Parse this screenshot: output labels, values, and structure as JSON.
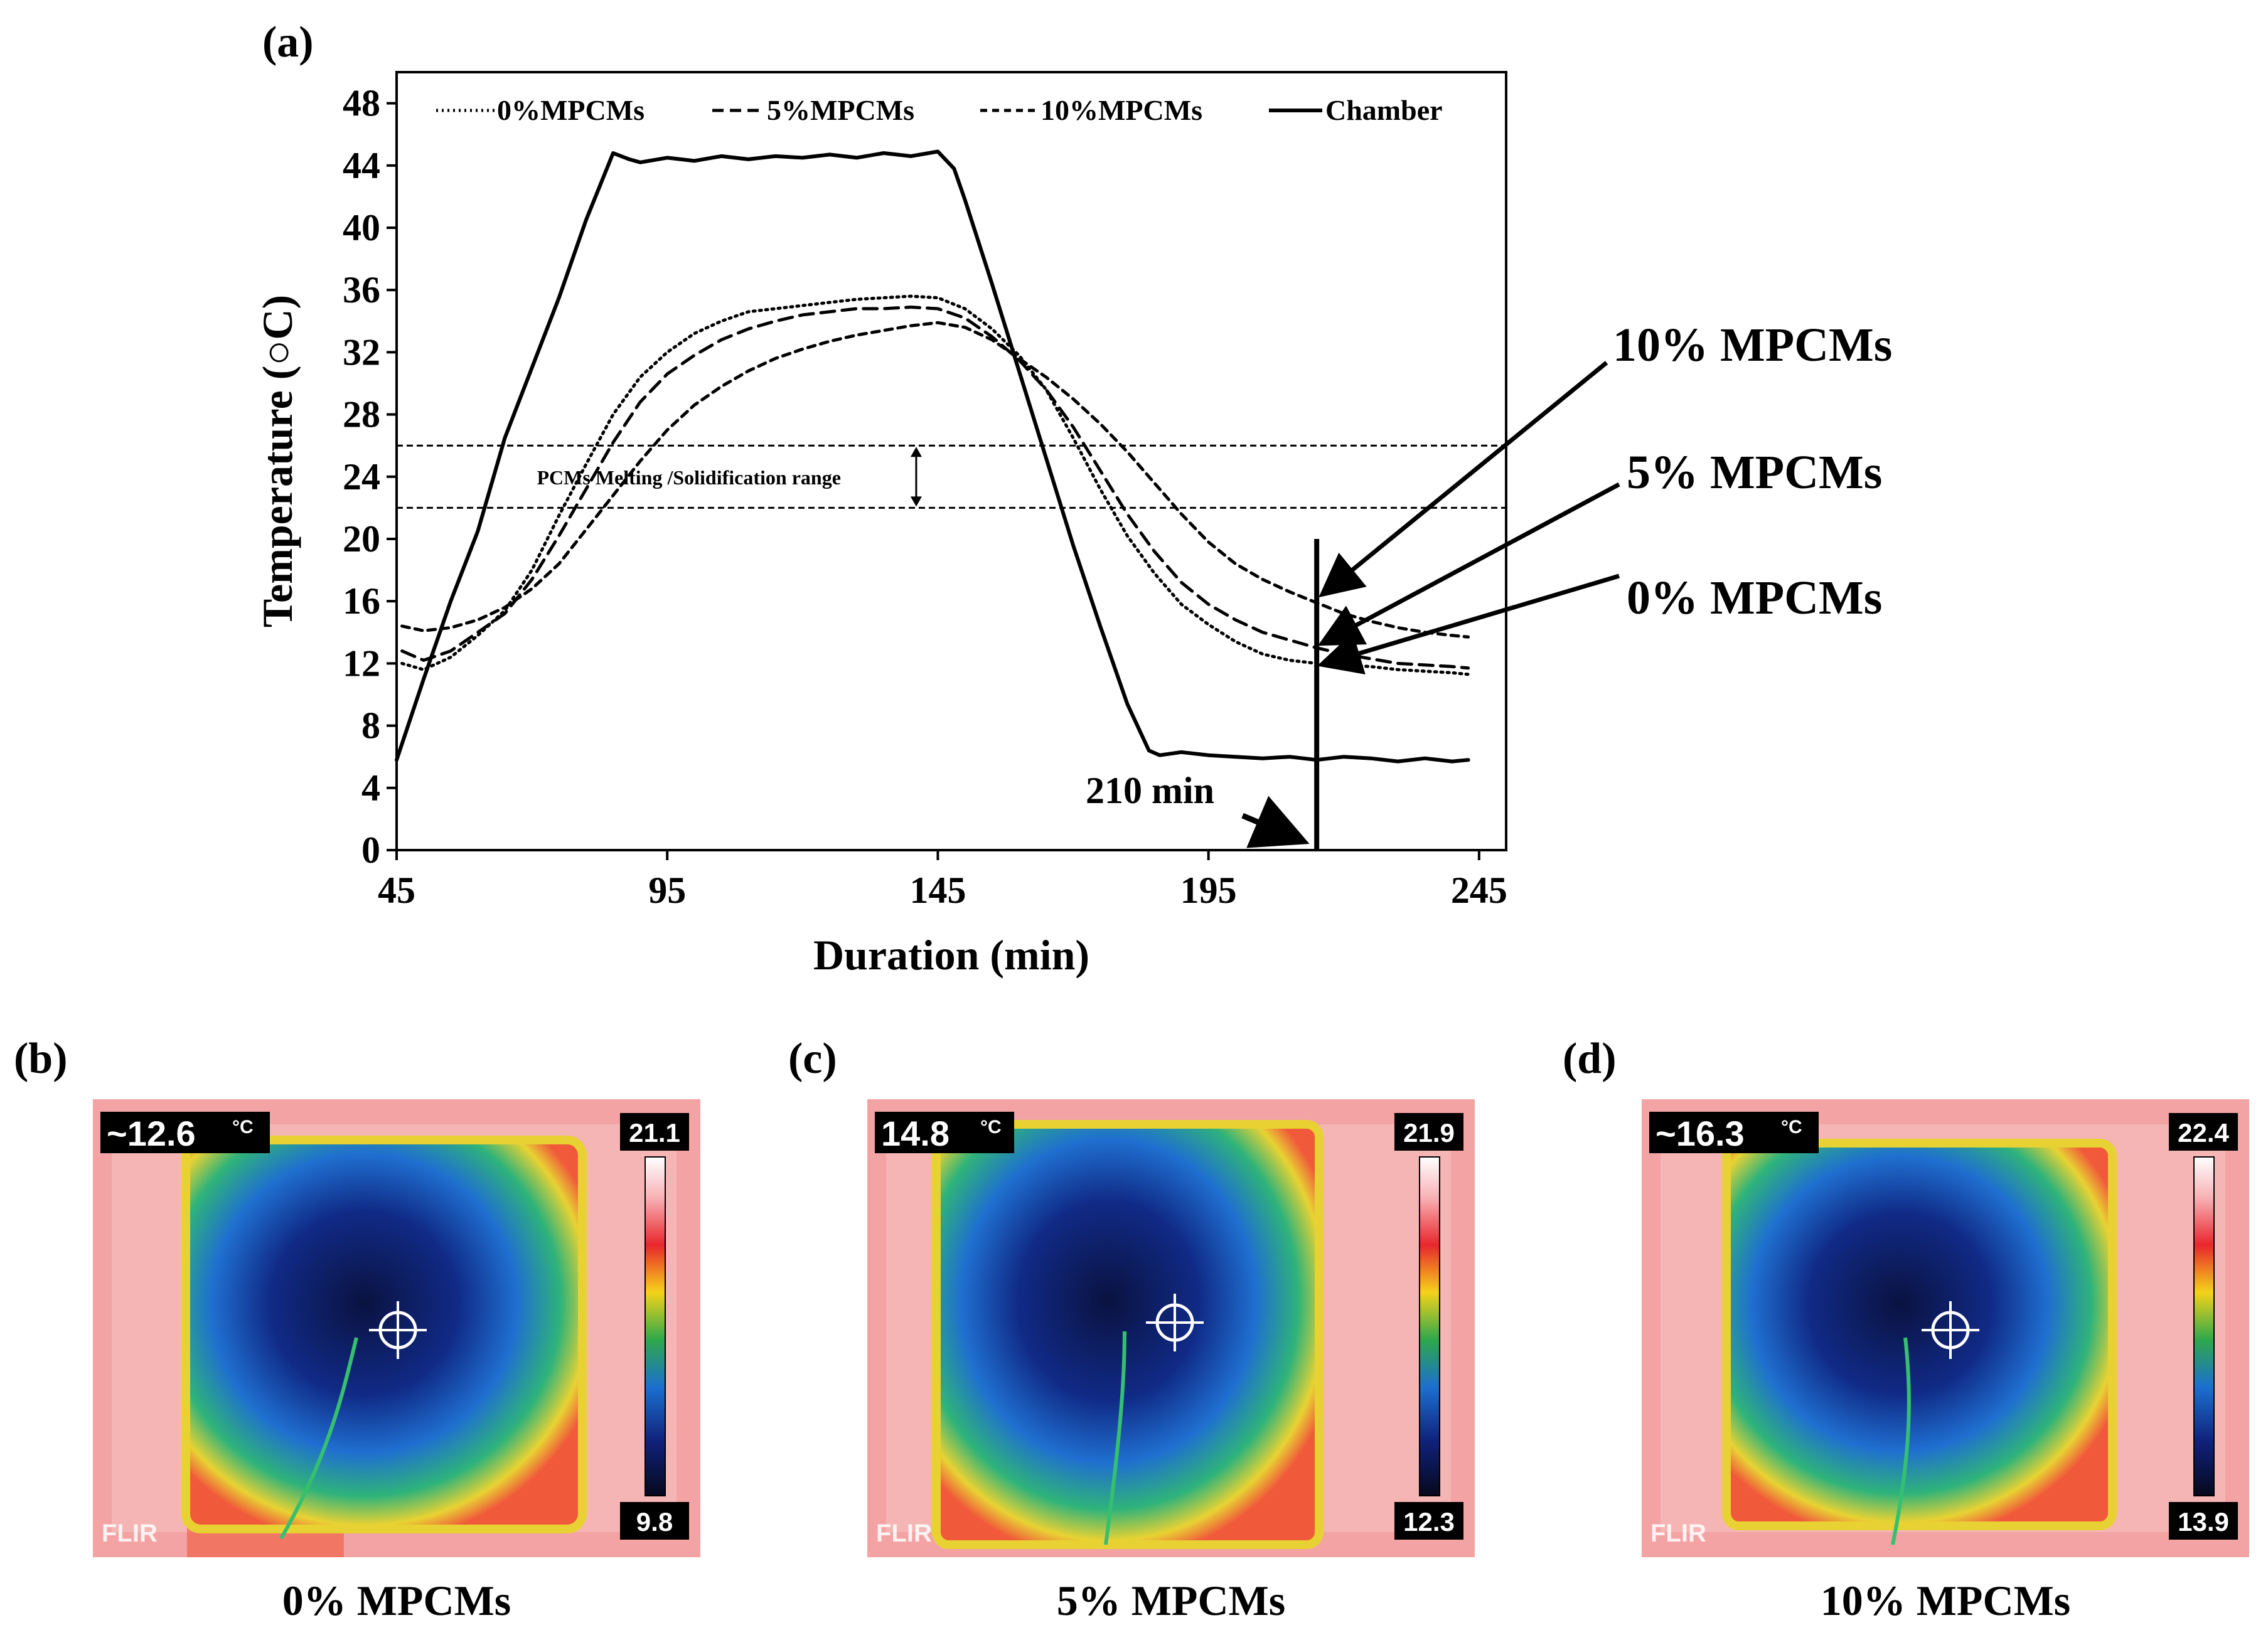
{
  "chart_data": {
    "type": "line",
    "panel_label": "(a)",
    "xlabel": "Duration (min)",
    "ylabel": "Temperature (○C)",
    "xlim": [
      45,
      250
    ],
    "ylim": [
      0,
      50
    ],
    "xticks": [
      45,
      95,
      145,
      195,
      245
    ],
    "yticks": [
      0,
      4,
      8,
      12,
      16,
      20,
      24,
      28,
      32,
      36,
      40,
      44,
      48
    ],
    "grid": false,
    "legend_position": "top",
    "series": [
      {
        "name": "0%MPCMs",
        "style": "dotted",
        "x": [
          46,
          50,
          55,
          60,
          65,
          70,
          75,
          80,
          85,
          90,
          95,
          100,
          105,
          110,
          115,
          120,
          125,
          130,
          135,
          140,
          145,
          150,
          155,
          160,
          165,
          170,
          175,
          180,
          185,
          190,
          195,
          200,
          205,
          210,
          215,
          220,
          225,
          230,
          235,
          240,
          243
        ],
        "y": [
          12.0,
          11.6,
          12.4,
          13.8,
          15.4,
          18.0,
          21.5,
          24.8,
          28.0,
          30.4,
          32.0,
          33.2,
          34.0,
          34.6,
          34.8,
          35.0,
          35.2,
          35.4,
          35.5,
          35.6,
          35.5,
          34.8,
          33.5,
          31.8,
          29.6,
          26.5,
          23.2,
          20.2,
          17.8,
          15.8,
          14.5,
          13.4,
          12.6,
          12.2,
          12.0,
          11.9,
          11.8,
          11.6,
          11.5,
          11.4,
          11.3
        ]
      },
      {
        "name": "5%MPCMs",
        "style": "dashed",
        "x": [
          46,
          50,
          55,
          60,
          65,
          70,
          75,
          80,
          85,
          90,
          95,
          100,
          105,
          110,
          115,
          120,
          125,
          130,
          135,
          140,
          145,
          150,
          155,
          160,
          165,
          170,
          175,
          180,
          185,
          190,
          195,
          200,
          205,
          210,
          215,
          220,
          225,
          230,
          235,
          240,
          243
        ],
        "y": [
          12.8,
          12.2,
          12.8,
          14.0,
          15.2,
          17.4,
          20.2,
          23.2,
          26.2,
          28.8,
          30.6,
          31.8,
          32.8,
          33.5,
          34.0,
          34.4,
          34.6,
          34.8,
          34.8,
          34.9,
          34.8,
          34.2,
          33.0,
          31.5,
          29.6,
          27.2,
          24.4,
          21.6,
          19.2,
          17.2,
          15.8,
          14.8,
          14.0,
          13.5,
          13.0,
          12.6,
          12.3,
          12.0,
          11.9,
          11.8,
          11.7
        ]
      },
      {
        "name": "10%MPCMs",
        "style": "short-dashed",
        "x": [
          46,
          50,
          55,
          60,
          65,
          70,
          75,
          80,
          85,
          90,
          95,
          100,
          105,
          110,
          115,
          120,
          125,
          130,
          135,
          140,
          145,
          150,
          155,
          160,
          165,
          170,
          175,
          180,
          185,
          190,
          195,
          200,
          205,
          210,
          215,
          220,
          225,
          230,
          235,
          240,
          243
        ],
        "y": [
          14.4,
          14.1,
          14.3,
          14.8,
          15.6,
          16.8,
          18.4,
          20.6,
          22.8,
          25.0,
          27.0,
          28.6,
          29.8,
          30.8,
          31.6,
          32.2,
          32.7,
          33.1,
          33.4,
          33.7,
          33.9,
          33.6,
          32.8,
          31.6,
          30.4,
          29.0,
          27.4,
          25.6,
          23.6,
          21.6,
          19.8,
          18.4,
          17.4,
          16.6,
          15.9,
          15.2,
          14.7,
          14.3,
          14.0,
          13.8,
          13.7
        ]
      },
      {
        "name": "Chamber",
        "style": "solid",
        "x": [
          45,
          50,
          55,
          60,
          65,
          70,
          75,
          80,
          85,
          88,
          90,
          95,
          100,
          105,
          110,
          115,
          120,
          125,
          130,
          135,
          140,
          145,
          148,
          150,
          155,
          160,
          165,
          170,
          175,
          180,
          184,
          186,
          190,
          195,
          200,
          205,
          210,
          215,
          220,
          225,
          230,
          235,
          240,
          243
        ],
        "y": [
          5.8,
          11.0,
          16.0,
          20.5,
          26.5,
          31.0,
          35.5,
          40.5,
          44.8,
          44.4,
          44.2,
          44.5,
          44.3,
          44.6,
          44.4,
          44.6,
          44.5,
          44.7,
          44.5,
          44.8,
          44.6,
          44.9,
          43.8,
          41.8,
          36.4,
          30.8,
          25.2,
          19.6,
          14.4,
          9.4,
          6.4,
          6.1,
          6.3,
          6.1,
          6.0,
          5.9,
          6.0,
          5.8,
          6.0,
          5.9,
          5.7,
          5.9,
          5.7,
          5.8
        ]
      }
    ],
    "annotations": {
      "range_label": "PCMs Melting /Solidification range",
      "range_band": [
        22,
        26
      ],
      "time_marker_label": "210 min",
      "time_marker_x": 215,
      "callouts": [
        {
          "label": "10% MPCMs",
          "target_x": 215,
          "target_y": 16.6
        },
        {
          "label": "5% MPCMs",
          "target_x": 215,
          "target_y": 13.4
        },
        {
          "label": "0% MPCMs",
          "target_x": 215,
          "target_y": 12.0
        }
      ]
    }
  },
  "thermal_images": [
    {
      "panel_label": "(b)",
      "readout": "~12.6",
      "unit": "°C",
      "scale_max": "21.1",
      "scale_min": "9.8",
      "brand": "FLIR",
      "caption": "0% MPCMs"
    },
    {
      "panel_label": "(c)",
      "readout": "14.8",
      "unit": "°C",
      "scale_max": "21.9",
      "scale_min": "12.3",
      "brand": "FLIR",
      "caption": "5% MPCMs"
    },
    {
      "panel_label": "(d)",
      "readout": "~16.3",
      "unit": "°C",
      "scale_max": "22.4",
      "scale_min": "13.9",
      "brand": "FLIR",
      "caption": "10% MPCMs"
    }
  ]
}
